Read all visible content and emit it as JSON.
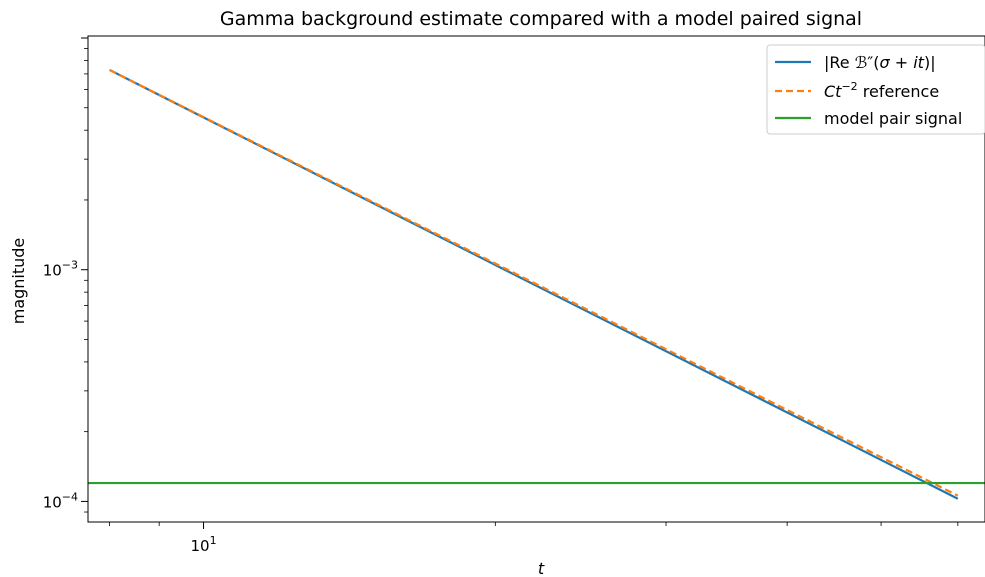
{
  "chart_data": {
    "type": "line",
    "title": "Gamma background estimate compared with a model paired signal",
    "xlabel": "t",
    "ylabel": "magnitude",
    "xscale": "log",
    "yscale": "log",
    "xlim": [
      7.6,
      64.0
    ],
    "ylim": [
      8.15e-05,
      0.0102
    ],
    "grid": false,
    "legend_position": "top-right",
    "xticks": [
      {
        "value": 10,
        "label_base": "10",
        "label_exp": "1"
      }
    ],
    "yticks": [
      {
        "value": 0.001,
        "label_base": "10",
        "label_exp": "−3"
      },
      {
        "value": 0.0001,
        "label_base": "10",
        "label_exp": "−4"
      }
    ],
    "series": [
      {
        "name": "|Re ℬ″(σ + it)|",
        "color": "#1f77b4",
        "style": "solid",
        "x": [
          8,
          60
        ],
        "y": [
          0.00728,
          0.0001027
        ]
      },
      {
        "name": "Ct⁻² reference",
        "color": "#ff7f0e",
        "style": "dashed",
        "x": [
          8,
          60
        ],
        "y": [
          0.00728,
          0.0001059
        ]
      },
      {
        "name": "model pair signal",
        "color": "#2ca02c",
        "style": "solid",
        "x": [
          7.6,
          64.0
        ],
        "y": [
          0.00012,
          0.00012
        ]
      }
    ]
  }
}
